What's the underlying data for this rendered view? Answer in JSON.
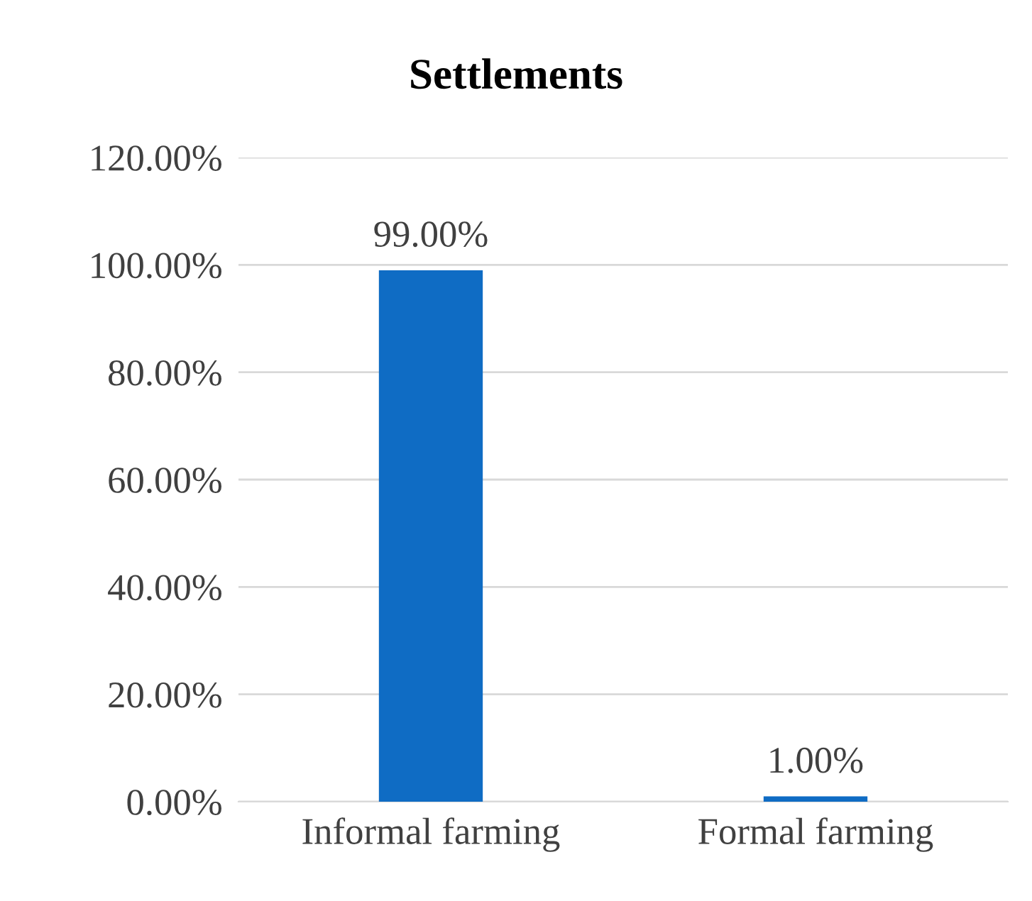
{
  "chart_data": {
    "type": "bar",
    "title": "Settlements",
    "categories": [
      "Informal farming",
      "Formal farming"
    ],
    "values": [
      99.0,
      1.0
    ],
    "color": "#0f6cc4",
    "value_labels": [
      "99.00%",
      "1.00%"
    ],
    "ylim": [
      0,
      120
    ],
    "yticks": [
      {
        "value": 0,
        "label": "0.00%"
      },
      {
        "value": 20,
        "label": "20.00%"
      },
      {
        "value": 40,
        "label": "40.00%"
      },
      {
        "value": 60,
        "label": "60.00%"
      },
      {
        "value": 80,
        "label": "80.00%"
      },
      {
        "value": 100,
        "label": "100.00%"
      },
      {
        "value": 120,
        "label": "120.00%"
      }
    ],
    "grid": "y",
    "legend": false
  }
}
